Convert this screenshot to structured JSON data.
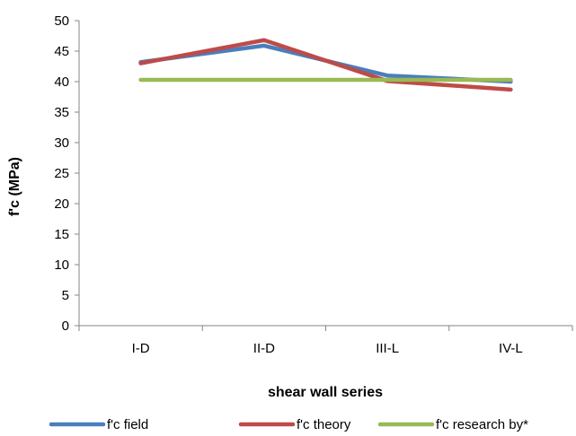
{
  "chart_data": {
    "type": "line",
    "categories": [
      "I-D",
      "II-D",
      "III-L",
      "IV-L"
    ],
    "xlabel": "shear wall series",
    "ylabel": "f'c (MPa)",
    "ylim": [
      0,
      50
    ],
    "yticks": [
      0,
      5,
      10,
      15,
      20,
      25,
      30,
      35,
      40,
      45,
      50
    ],
    "grid": false,
    "legend": "bottom",
    "series": [
      {
        "name": "f'c field",
        "values": [
          43.2,
          45.9,
          41.0,
          40.0
        ],
        "color": "#4a7ebb"
      },
      {
        "name": "f'c theory",
        "values": [
          43.0,
          46.8,
          40.1,
          38.7
        ],
        "color": "#be4b48"
      },
      {
        "name": "f'c research by*",
        "values": [
          40.3,
          40.3,
          40.3,
          40.3
        ],
        "color": "#98b954"
      }
    ]
  }
}
